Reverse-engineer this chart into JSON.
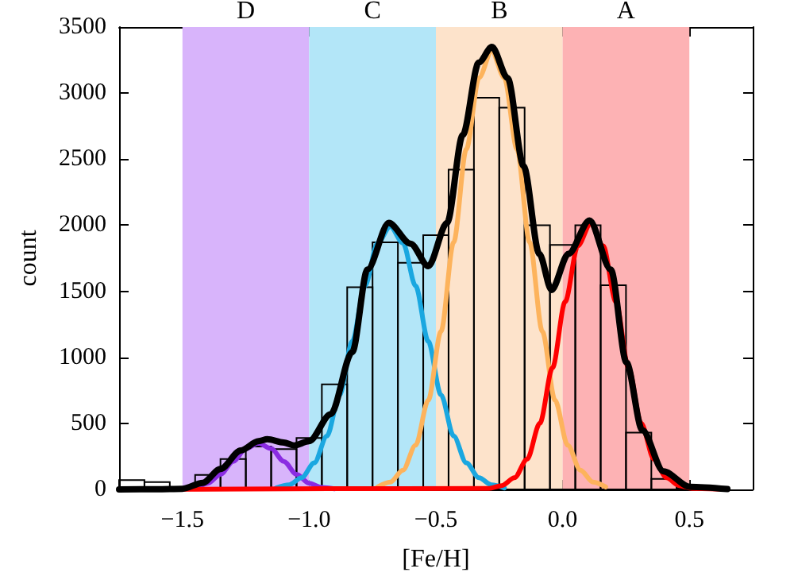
{
  "chart_data": {
    "type": "histogram",
    "xlabel": "[Fe/H]",
    "ylabel": "count",
    "color": "#000000",
    "bins": [
      -1.75,
      -1.65,
      -1.55,
      -1.45,
      -1.35,
      -1.25,
      -1.15,
      -1.05,
      -0.95,
      -0.85,
      -0.75,
      -0.65,
      -0.55,
      -0.45,
      -0.35,
      -0.25,
      -0.15,
      -0.05,
      0.05,
      0.15,
      0.25,
      0.35,
      0.45,
      0.55,
      0.65
    ],
    "values": [
      70,
      55,
      10,
      110,
      230,
      325,
      305,
      390,
      795,
      1530,
      1870,
      1715,
      1925,
      2420,
      2965,
      2890,
      2000,
      1850,
      2000,
      1545,
      430,
      80,
      10,
      5
    ],
    "series": [
      {
        "type": "line",
        "color": "#8a2be2",
        "x": [
          -1.5,
          -1.45,
          -1.4,
          -1.35,
          -1.3,
          -1.25,
          -1.2,
          -1.15,
          -1.1,
          -1.05,
          -1.0,
          -0.95,
          -0.9
        ],
        "values": [
          4,
          15,
          47,
          114,
          212,
          309,
          350,
          309,
          212,
          114,
          47,
          15,
          4
        ]
      },
      {
        "type": "line",
        "color": "#1aa7e0",
        "x": [
          -1.13,
          -1.08,
          -1.03,
          -0.98,
          -0.93,
          -0.88,
          -0.83,
          -0.78,
          -0.73,
          -0.68,
          -0.63,
          -0.58,
          -0.53,
          -0.48,
          -0.43,
          -0.38,
          -0.33,
          -0.28,
          -0.23
        ],
        "values": [
          11,
          34,
          88,
          201,
          404,
          716,
          1120,
          1540,
          1865,
          1990,
          1865,
          1540,
          1120,
          716,
          404,
          201,
          88,
          34,
          11
        ]
      },
      {
        "type": "line",
        "color": "#fdb35c",
        "x": [
          -0.73,
          -0.68,
          -0.63,
          -0.58,
          -0.53,
          -0.48,
          -0.43,
          -0.38,
          -0.33,
          -0.28,
          -0.23,
          -0.18,
          -0.13,
          -0.08,
          -0.03,
          0.02,
          0.07,
          0.12,
          0.17
        ],
        "values": [
          19,
          56,
          146,
          335,
          675,
          1195,
          1870,
          2575,
          3115,
          3320,
          3115,
          2575,
          1870,
          1195,
          675,
          335,
          146,
          56,
          19
        ]
      },
      {
        "type": "line",
        "color": "#ff0000",
        "x": [
          -1.75,
          -0.29,
          -0.24,
          -0.19,
          -0.14,
          -0.09,
          -0.04,
          0.01,
          0.06,
          0.11,
          0.16,
          0.21,
          0.26,
          0.31,
          0.36,
          0.41,
          0.46,
          0.51,
          0.65
        ],
        "values": [
          0,
          8,
          29,
          88,
          229,
          500,
          920,
          1421,
          1843,
          2010,
          1843,
          1421,
          920,
          500,
          229,
          88,
          29,
          8,
          0
        ]
      },
      {
        "type": "line",
        "color": "#000000",
        "x": [
          -1.75,
          -1.6,
          -1.5,
          -1.42,
          -1.35,
          -1.27,
          -1.2,
          -1.165,
          -1.1,
          -1.06,
          -1.0,
          -0.915,
          -0.83,
          -0.77,
          -0.686,
          -0.6,
          -0.53,
          -0.456,
          -0.394,
          -0.331,
          -0.279,
          -0.217,
          -0.154,
          -0.092,
          -0.044,
          0.023,
          0.106,
          0.19,
          0.252,
          0.314,
          0.398,
          0.502,
          0.65
        ],
        "values": [
          0,
          2,
          5,
          50,
          155,
          295,
          365,
          380,
          355,
          333,
          365,
          570,
          1040,
          1665,
          2017,
          1860,
          1690,
          2017,
          2683,
          3231,
          3349,
          3114,
          2448,
          1783,
          1510,
          1783,
          2036,
          1665,
          960,
          450,
          137,
          20,
          3
        ]
      }
    ],
    "bands": [
      {
        "axis": "x",
        "from": -1.5,
        "to": -1.0,
        "label": "D",
        "color": "#d8b4fb"
      },
      {
        "axis": "x",
        "from": -1.0,
        "to": -0.5,
        "label": "C",
        "color": "#b3e6f8"
      },
      {
        "axis": "x",
        "from": -0.5,
        "to": 0.0,
        "label": "B",
        "color": "#fde3cb"
      },
      {
        "axis": "x",
        "from": 0.0,
        "to": 0.5,
        "label": "A",
        "color": "#fdb2b4"
      }
    ],
    "xlim": [
      -1.75,
      0.75
    ],
    "xticks": [
      {
        "value": -1.5,
        "label": "−1.5"
      },
      {
        "value": -1.0,
        "label": "−1.0"
      },
      {
        "value": -0.5,
        "label": "−0.5"
      },
      {
        "value": 0,
        "label": "0.0"
      },
      {
        "value": 0.5,
        "label": "0.5"
      }
    ],
    "ylim": [
      0,
      3500
    ],
    "yticks": [
      0,
      500,
      1000,
      1500,
      2000,
      2500,
      3000,
      3500
    ],
    "grid": false,
    "legend": false,
    "line_style": "solid",
    "marker": "none"
  }
}
